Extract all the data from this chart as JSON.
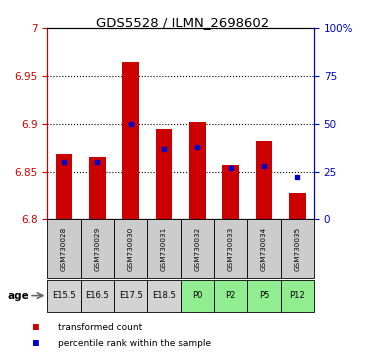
{
  "title": "GDS5528 / ILMN_2698602",
  "samples": [
    "GSM730028",
    "GSM730029",
    "GSM730030",
    "GSM730031",
    "GSM730032",
    "GSM730033",
    "GSM730034",
    "GSM730035"
  ],
  "ages": [
    "E15.5",
    "E16.5",
    "E17.5",
    "E18.5",
    "P0",
    "P2",
    "P5",
    "P12"
  ],
  "age_colors_light": [
    "#d3d3d3",
    "#d3d3d3",
    "#d3d3d3",
    "#d3d3d3",
    "#90ee90",
    "#90ee90",
    "#90ee90",
    "#90ee90"
  ],
  "age_colors_dark": [
    "#bbbbbb",
    "#bbbbbb",
    "#bbbbbb",
    "#bbbbbb",
    "#50dd50",
    "#50dd50",
    "#50dd50",
    "#50dd50"
  ],
  "transformed_count": [
    6.868,
    6.865,
    6.965,
    6.895,
    6.902,
    6.857,
    6.882,
    6.828
  ],
  "percentile_rank": [
    30,
    30,
    50,
    37,
    38,
    27,
    28,
    22
  ],
  "ylim_left": [
    6.8,
    7.0
  ],
  "ylim_right": [
    0,
    100
  ],
  "yticks_left": [
    6.8,
    6.85,
    6.9,
    6.95,
    7.0
  ],
  "yticks_right": [
    0,
    25,
    50,
    75,
    100
  ],
  "ytick_labels_left": [
    "6.8",
    "6.85",
    "6.9",
    "6.95",
    "7"
  ],
  "ytick_labels_right": [
    "0",
    "25",
    "50",
    "75",
    "100%"
  ],
  "bar_color": "#cc0000",
  "percentile_color": "#0000cc",
  "bar_width": 0.5,
  "baseline": 6.8,
  "legend_red": "transformed count",
  "legend_blue": "percentile rank within the sample",
  "age_label": "age",
  "sample_bg": "#cccccc",
  "ylabel_left_color": "#cc0000",
  "ylabel_right_color": "#0000cc"
}
